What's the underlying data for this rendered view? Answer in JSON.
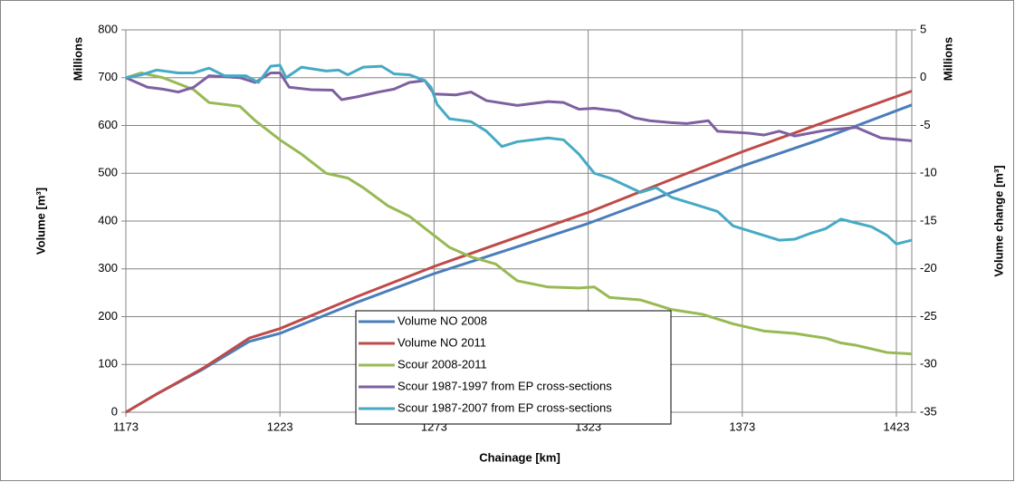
{
  "chart_data": {
    "type": "line",
    "x_label": "Chainage [km]",
    "y_label": "Volume [m³]",
    "y2_label": "Volume change [m³]",
    "y_unit_label": "Millions",
    "y2_unit_label": "Millions",
    "xlim": [
      1173,
      1428
    ],
    "xticks": [
      1173,
      1223,
      1273,
      1323,
      1373,
      1423
    ],
    "ylim": [
      0,
      800
    ],
    "yticks": [
      0,
      100,
      200,
      300,
      400,
      500,
      600,
      700,
      800
    ],
    "y2lim": [
      -35,
      5
    ],
    "y2ticks": [
      -35,
      -30,
      -25,
      -20,
      -15,
      -10,
      -5,
      0,
      5
    ],
    "grid": true,
    "legend": "lower-center",
    "series": [
      {
        "name": "Volume NO 2008",
        "color": "#4a7ebb",
        "x": [
          1173,
          1183,
          1198,
          1213,
          1223,
          1248,
          1273,
          1298,
          1323,
          1348,
          1373,
          1398,
          1428
        ],
        "values": [
          0,
          38,
          90,
          148,
          165,
          230,
          290,
          342,
          395,
          455,
          515,
          570,
          643
        ]
      },
      {
        "name": "Volume NO 2011",
        "color": "#be4b48",
        "x": [
          1173,
          1183,
          1198,
          1213,
          1223,
          1248,
          1273,
          1298,
          1323,
          1348,
          1373,
          1398,
          1428
        ],
        "values": [
          0,
          38,
          92,
          155,
          175,
          242,
          305,
          362,
          418,
          482,
          545,
          603,
          672
        ]
      },
      {
        "name": "Scour 2008-2011",
        "color": "#98b954",
        "axis": "y2",
        "x": [
          1173,
          1178,
          1185,
          1195,
          1200,
          1210,
          1215,
          1223,
          1230,
          1238,
          1245,
          1250,
          1258,
          1265,
          1273,
          1278,
          1285,
          1293,
          1300,
          1310,
          1320,
          1325,
          1330,
          1340,
          1350,
          1360,
          1370,
          1380,
          1390,
          1400,
          1405,
          1410,
          1420,
          1428
        ],
        "values": [
          0,
          0.5,
          0,
          -1.25,
          -2.6,
          -3,
          -4.5,
          -6.5,
          -8,
          -10,
          -10.5,
          -11.5,
          -13.4,
          -14.5,
          -16.5,
          -17.75,
          -18.75,
          -19.5,
          -21.25,
          -21.9,
          -22,
          -21.9,
          -23,
          -23.25,
          -24.25,
          -24.75,
          -25.75,
          -26.5,
          -26.75,
          -27.25,
          -27.75,
          -28,
          -28.75,
          -28.9
        ]
      },
      {
        "name": "Scour 1987-1997 from EP cross-sections",
        "color": "#7d60a0",
        "axis": "y2",
        "x": [
          1173,
          1180,
          1185,
          1190,
          1195,
          1200,
          1210,
          1215,
          1220,
          1223,
          1226,
          1233,
          1240,
          1243,
          1248,
          1255,
          1260,
          1265,
          1270,
          1273,
          1280,
          1285,
          1290,
          1300,
          1310,
          1315,
          1320,
          1325,
          1333,
          1338,
          1343,
          1350,
          1355,
          1362,
          1365,
          1375,
          1380,
          1385,
          1390,
          1400,
          1410,
          1418,
          1428
        ],
        "values": [
          0,
          -1,
          -1.2,
          -1.5,
          -1,
          0.2,
          0,
          -0.5,
          0.5,
          0.5,
          -1,
          -1.25,
          -1.3,
          -2.3,
          -2,
          -1.5,
          -1.2,
          -0.5,
          -0.3,
          -1.7,
          -1.8,
          -1.5,
          -2.4,
          -2.9,
          -2.5,
          -2.6,
          -3.3,
          -3.2,
          -3.5,
          -4.2,
          -4.5,
          -4.7,
          -4.8,
          -4.5,
          -5.6,
          -5.8,
          -6,
          -5.6,
          -6.1,
          -5.5,
          -5.2,
          -6.3,
          -6.6
        ]
      },
      {
        "name": "Scour 1987-2007 from EP cross-sections",
        "color": "#46aac5",
        "axis": "y2",
        "x": [
          1173,
          1178,
          1183,
          1190,
          1195,
          1200,
          1205,
          1212,
          1216,
          1220,
          1223,
          1225,
          1230,
          1238,
          1242,
          1245,
          1250,
          1256,
          1260,
          1265,
          1270,
          1272,
          1274,
          1278,
          1285,
          1290,
          1295,
          1300,
          1310,
          1315,
          1320,
          1325,
          1330,
          1340,
          1345,
          1350,
          1355,
          1365,
          1370,
          1380,
          1385,
          1390,
          1395,
          1400,
          1405,
          1410,
          1415,
          1420,
          1423,
          1428
        ],
        "values": [
          0,
          0.3,
          0.8,
          0.5,
          0.5,
          1,
          0.2,
          0.2,
          -0.5,
          1.2,
          1.3,
          0,
          1.1,
          0.7,
          0.8,
          0.3,
          1.1,
          1.2,
          0.4,
          0.3,
          -0.3,
          -1,
          -2.8,
          -4.3,
          -4.6,
          -5.6,
          -7.2,
          -6.7,
          -6.3,
          -6.5,
          -8,
          -10,
          -10.5,
          -12,
          -11.5,
          -12.5,
          -13,
          -14,
          -15.5,
          -16.5,
          -17,
          -16.9,
          -16.3,
          -15.8,
          -14.8,
          -15.2,
          -15.6,
          -16.5,
          -17.4,
          -17
        ]
      }
    ]
  }
}
